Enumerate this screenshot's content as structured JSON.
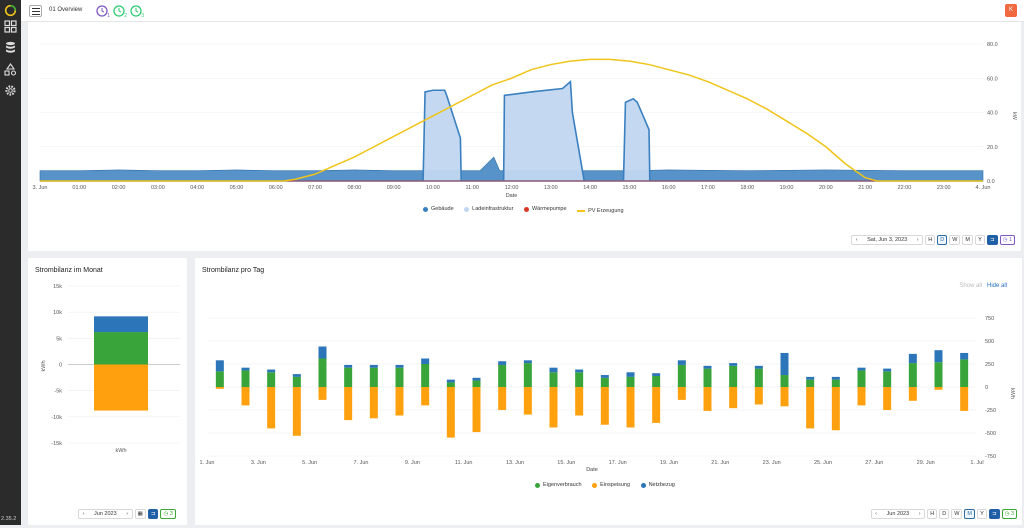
{
  "app": {
    "version": "2.35.2",
    "page_title": "01 Overview",
    "avatar_letter": "K",
    "topics": [
      {
        "sub": "1",
        "color": "#7e57c2"
      },
      {
        "sub": "2",
        "color": "#2ecc71"
      },
      {
        "sub": "3",
        "color": "#2ecc71"
      }
    ]
  },
  "sidebar": {
    "icons": [
      "logo-icon",
      "dashboard-icon",
      "database-icon",
      "shapes-icon",
      "settings-icon"
    ]
  },
  "power_chart": {
    "chart_data": {
      "type": "area",
      "xlabel": "Date",
      "ylabel": "kW",
      "ylim": [
        0,
        80
      ],
      "y_ticks": [
        "0.0",
        "20.0",
        "40.0",
        "60.0",
        "80.0"
      ],
      "x_ticks": [
        "3. Jun",
        "01:00",
        "02:00",
        "03:00",
        "04:00",
        "05:00",
        "06:00",
        "07:00",
        "08:00",
        "09:00",
        "10:00",
        "11:00",
        "12:00",
        "13:00",
        "14:00",
        "15:00",
        "16:00",
        "17:00",
        "18:00",
        "19:00",
        "20:00",
        "21:00",
        "22:00",
        "23:00",
        "4. Jun"
      ],
      "x_hours": [
        0,
        24
      ],
      "series": [
        {
          "name": "Gebäude",
          "color": "#3a7fbf",
          "points": [
            [
              0,
              6
            ],
            [
              1,
              6
            ],
            [
              2,
              6.5
            ],
            [
              3,
              6
            ],
            [
              4,
              6
            ],
            [
              5,
              6.5
            ],
            [
              6,
              6
            ],
            [
              7,
              6
            ],
            [
              8,
              6.5
            ],
            [
              9,
              6
            ],
            [
              9.8,
              6
            ],
            [
              11.2,
              6
            ],
            [
              11.55,
              14
            ],
            [
              11.7,
              6
            ],
            [
              12,
              6
            ],
            [
              14.9,
              6
            ],
            [
              16,
              6.5
            ],
            [
              18,
              6
            ],
            [
              20,
              6.5
            ],
            [
              22,
              6
            ],
            [
              24,
              6
            ]
          ]
        },
        {
          "name": "Ladeinfrastruktur",
          "color": "#c1d7f0",
          "points": [
            [
              0,
              0
            ],
            [
              9.75,
              0
            ],
            [
              9.8,
              52
            ],
            [
              10,
              53
            ],
            [
              10.3,
              53
            ],
            [
              10.35,
              50
            ],
            [
              10.7,
              25
            ],
            [
              10.72,
              0
            ],
            [
              11.8,
              0
            ],
            [
              11.82,
              50
            ],
            [
              12.5,
              52
            ],
            [
              13.3,
              54
            ],
            [
              13.5,
              58
            ],
            [
              13.55,
              40
            ],
            [
              13.85,
              0
            ],
            [
              14.85,
              0
            ],
            [
              14.9,
              46
            ],
            [
              15.1,
              48
            ],
            [
              15.2,
              46
            ],
            [
              15.5,
              30
            ],
            [
              15.52,
              0
            ],
            [
              24,
              0
            ]
          ]
        },
        {
          "name": "Wärmepumpe",
          "color": "#d9352b",
          "points": [
            [
              0,
              0
            ],
            [
              24,
              0
            ]
          ]
        },
        {
          "name": "PV Erzeugung",
          "color": "#f0c419",
          "points": [
            [
              0,
              0
            ],
            [
              6.2,
              0
            ],
            [
              6.5,
              1
            ],
            [
              7,
              4
            ],
            [
              7.5,
              9
            ],
            [
              8,
              14
            ],
            [
              8.5,
              20
            ],
            [
              9,
              26
            ],
            [
              9.5,
              32
            ],
            [
              10,
              38
            ],
            [
              10.5,
              44
            ],
            [
              11,
              50
            ],
            [
              11.5,
              56
            ],
            [
              12,
              60
            ],
            [
              12.5,
              65
            ],
            [
              13,
              68
            ],
            [
              13.5,
              70
            ],
            [
              14,
              71
            ],
            [
              14.5,
              71
            ],
            [
              15,
              70
            ],
            [
              15.5,
              68
            ],
            [
              16,
              65
            ],
            [
              16.5,
              62
            ],
            [
              17,
              58
            ],
            [
              17.5,
              53
            ],
            [
              18,
              48
            ],
            [
              18.5,
              42
            ],
            [
              19,
              35
            ],
            [
              19.5,
              28
            ],
            [
              20,
              20
            ],
            [
              20.5,
              10
            ],
            [
              21,
              2
            ],
            [
              21.3,
              0
            ],
            [
              24,
              0
            ]
          ]
        }
      ]
    },
    "legend": [
      "Gebäude",
      "Ladeinfrastruktur",
      "Wärmepumpe",
      "PV Erzeugung"
    ],
    "toolbar": {
      "date": "Sat, Jun 3, 2023",
      "h": "H",
      "d": "D",
      "w": "W",
      "m": "M",
      "y": "Y",
      "badge": "1"
    }
  },
  "monthly": {
    "title": "Strombilanz im Monat",
    "chart_data": {
      "type": "bar",
      "categories": [
        "kWh"
      ],
      "ylabel": "kWh",
      "ylim": [
        -15000,
        15000
      ],
      "y_ticks": [
        "15k",
        "10k",
        "5k",
        "0",
        "-5k",
        "-10k",
        "-15k"
      ],
      "series": [
        {
          "name": "Eigenverbrauch",
          "color": "#38a43a",
          "values": [
            6200
          ]
        },
        {
          "name": "Netzbezug",
          "color": "#2b75b8",
          "values": [
            3000
          ]
        },
        {
          "name": "Einspeisung",
          "color": "#ffa10f",
          "values": [
            -8800
          ]
        }
      ]
    },
    "toolbar": {
      "date": "Jun 2023",
      "badge": "3"
    }
  },
  "daily": {
    "title": "Strombilanz pro Tag",
    "show_all": "Show all",
    "hide_all": "Hide all",
    "chart_data": {
      "type": "bar",
      "xlabel": "Date",
      "ylabel": "kWh",
      "ylim": [
        -750,
        750
      ],
      "y_ticks": [
        "750",
        "500",
        "250",
        "0",
        "-250",
        "-500",
        "-750"
      ],
      "x_ticks": [
        "1. Jun",
        "3. Jun",
        "5. Jun",
        "7. Jun",
        "9. Jun",
        "11. Jun",
        "13. Jun",
        "15. Jun",
        "17. Jun",
        "19. Jun",
        "21. Jun",
        "23. Jun",
        "25. Jun",
        "27. Jun",
        "29. Jun",
        "1. Jul"
      ],
      "categories": [
        "1",
        "2",
        "3",
        "4",
        "5",
        "6",
        "7",
        "8",
        "9",
        "10",
        "11",
        "12",
        "13",
        "14",
        "15",
        "16",
        "17",
        "18",
        "19",
        "20",
        "21",
        "22",
        "23",
        "24",
        "25",
        "26",
        "27",
        "28",
        "29",
        "30"
      ],
      "series": [
        {
          "name": "Eigenverbrauch",
          "color": "#38a43a",
          "values": [
            170,
            180,
            160,
            110,
            310,
            210,
            210,
            210,
            250,
            50,
            70,
            240,
            260,
            160,
            160,
            100,
            110,
            120,
            240,
            200,
            230,
            200,
            130,
            80,
            80,
            180,
            170,
            260,
            270,
            300
          ]
        },
        {
          "name": "Netzbezug",
          "color": "#2b75b8",
          "values": [
            120,
            30,
            30,
            30,
            130,
            30,
            30,
            30,
            60,
            30,
            30,
            40,
            30,
            50,
            30,
            30,
            50,
            30,
            50,
            30,
            30,
            30,
            240,
            30,
            30,
            30,
            30,
            100,
            130,
            70
          ]
        },
        {
          "name": "Einspeisung",
          "color": "#ffa10f",
          "values": [
            -20,
            -200,
            -450,
            -530,
            -140,
            -360,
            -340,
            -310,
            -200,
            -550,
            -490,
            -250,
            -300,
            -440,
            -310,
            -410,
            -440,
            -390,
            -140,
            -260,
            -230,
            -190,
            -210,
            -450,
            -470,
            -200,
            -250,
            -150,
            -30,
            -260
          ]
        }
      ]
    },
    "legend": [
      "Eigenverbrauch",
      "Einspeisung",
      "Netzbezug"
    ],
    "toolbar": {
      "date": "Jun 2023",
      "h": "H",
      "d": "D",
      "w": "W",
      "m": "M",
      "y": "Y",
      "badge": "3"
    }
  }
}
